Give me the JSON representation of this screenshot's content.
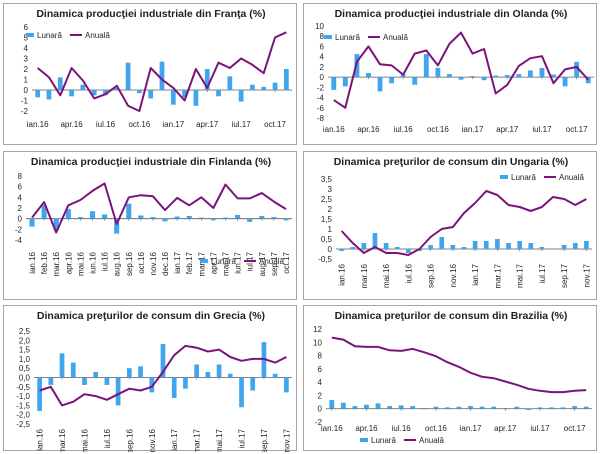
{
  "colors": {
    "monthly": "#41a5ee",
    "annual": "#7b137b",
    "axis": "#595959"
  },
  "chart_data": [
    {
      "type": "bar+line",
      "title": "Dinamica producţiei industriale din Franţa (%)",
      "legend": {
        "position": "top-left",
        "monthly_label": "Lunară",
        "annual_label": "Anuală"
      },
      "ylim": [
        -2,
        6
      ],
      "yticks": [
        "-2",
        "-1",
        "0",
        "1",
        "2",
        "3",
        "4",
        "5",
        "6"
      ],
      "ytick_values": [
        -2,
        -1,
        0,
        1,
        2,
        3,
        4,
        5,
        6
      ],
      "xticks": [
        {
          "index": 0,
          "label": "ian.16"
        },
        {
          "index": 3,
          "label": "apr.16"
        },
        {
          "index": 6,
          "label": "iul.16"
        },
        {
          "index": 9,
          "label": "oct.16"
        },
        {
          "index": 12,
          "label": "ian.17"
        },
        {
          "index": 15,
          "label": "apr.17"
        },
        {
          "index": 18,
          "label": "iul.17"
        },
        {
          "index": 21,
          "label": "oct.17"
        }
      ],
      "monthly": [
        -0.7,
        -0.9,
        1.2,
        -0.6,
        0.5,
        -0.5,
        -0.5,
        0.2,
        2.6,
        -0.3,
        -0.8,
        2.7,
        -1.4,
        -0.7,
        -1.5,
        2.0,
        -0.6,
        1.3,
        -1.1,
        0.5,
        0.3,
        0.7,
        2.0
      ],
      "annual": [
        2.1,
        1.2,
        -0.5,
        2.1,
        0.9,
        -0.8,
        -0.4,
        0.4,
        -1.5,
        -2.0,
        2.1,
        1.0,
        0.2,
        -1.0,
        2.0,
        0.2,
        2.6,
        2.1,
        3.0,
        2.4,
        1.6,
        5.0,
        5.5
      ]
    },
    {
      "type": "bar+line",
      "title": "Dinamica producţiei industriale din Olanda (%)",
      "legend": {
        "position": "top-left",
        "monthly_label": "Lunară",
        "annual_label": "Anuală"
      },
      "ylim": [
        -8,
        10
      ],
      "yticks": [
        "-8",
        "-6",
        "-4",
        "-2",
        "0",
        "2",
        "4",
        "6",
        "8",
        "10"
      ],
      "ytick_values": [
        -8,
        -6,
        -4,
        -2,
        0,
        2,
        4,
        6,
        8,
        10
      ],
      "xticks": [
        {
          "index": 0,
          "label": "ian.16"
        },
        {
          "index": 3,
          "label": "apr.16"
        },
        {
          "index": 6,
          "label": "iul.16"
        },
        {
          "index": 9,
          "label": "oct.16"
        },
        {
          "index": 12,
          "label": "ian.17"
        },
        {
          "index": 15,
          "label": "apr.17"
        },
        {
          "index": 18,
          "label": "iul.17"
        },
        {
          "index": 21,
          "label": "oct.17"
        }
      ],
      "monthly": [
        -2.5,
        -1.8,
        4.5,
        0.8,
        -2.8,
        -1.2,
        0.5,
        -1.5,
        4.5,
        1.8,
        0.6,
        -0.5,
        0.2,
        -0.6,
        0.3,
        0.4,
        0.6,
        1.3,
        1.8,
        0.5,
        -1.8,
        3.0,
        -1.2
      ],
      "annual": [
        -4.5,
        -6.0,
        3.0,
        6.0,
        2.5,
        2.3,
        0.5,
        4.6,
        5.2,
        2.3,
        6.5,
        8.7,
        4.6,
        5.5,
        -3.2,
        -1.5,
        2.2,
        3.7,
        4.1,
        -1.2,
        1.5,
        2.0,
        -0.5
      ]
    },
    {
      "type": "bar+line",
      "title": "Dinamica producţiei industriale din Finlanda (%)",
      "legend": {
        "position": "bottom-right",
        "monthly_label": "Lunară",
        "annual_label": "Anuală"
      },
      "ylim": [
        -4,
        8
      ],
      "yticks": [
        "-4",
        "-2",
        "0",
        "2",
        "4",
        "6",
        "8"
      ],
      "ytick_values": [
        -4,
        -2,
        0,
        2,
        4,
        6,
        8
      ],
      "xticks": [
        {
          "index": 0,
          "label": "ian.16"
        },
        {
          "index": 1,
          "label": "feb.16"
        },
        {
          "index": 2,
          "label": "mar.16"
        },
        {
          "index": 3,
          "label": "apr.16"
        },
        {
          "index": 4,
          "label": "mai.16"
        },
        {
          "index": 5,
          "label": "iun.16"
        },
        {
          "index": 6,
          "label": "iul.16"
        },
        {
          "index": 7,
          "label": "aug.16"
        },
        {
          "index": 8,
          "label": "sep.16"
        },
        {
          "index": 9,
          "label": "oct.16"
        },
        {
          "index": 10,
          "label": "nov.16"
        },
        {
          "index": 11,
          "label": "dec.16"
        },
        {
          "index": 12,
          "label": "ian.17"
        },
        {
          "index": 13,
          "label": "feb.17"
        },
        {
          "index": 14,
          "label": "mar.17"
        },
        {
          "index": 15,
          "label": "apr.17"
        },
        {
          "index": 16,
          "label": "mai.17"
        },
        {
          "index": 17,
          "label": "iun.17"
        },
        {
          "index": 18,
          "label": "iul.17"
        },
        {
          "index": 19,
          "label": "aug.17"
        },
        {
          "index": 20,
          "label": "sep.17"
        },
        {
          "index": 21,
          "label": "oct.17"
        }
      ],
      "monthly": [
        -1.5,
        2.5,
        -2.2,
        1.8,
        0.3,
        1.4,
        0.8,
        -2.8,
        2.8,
        0.6,
        0.3,
        -0.5,
        0.4,
        0.5,
        0.2,
        -0.3,
        0.2,
        0.7,
        -0.6,
        0.5,
        0.3,
        -0.3
      ],
      "annual": [
        0.2,
        3.1,
        -2.6,
        2.5,
        3.5,
        5.2,
        6.6,
        -1.0,
        4.0,
        4.4,
        4.2,
        1.6,
        3.9,
        2.5,
        4.0,
        2.0,
        6.4,
        3.8,
        3.8,
        4.8,
        3.2,
        1.8
      ]
    },
    {
      "type": "bar+line",
      "title": "Dinamica preţurilor de consum din Ungaria (%)",
      "legend": {
        "position": "top-right",
        "monthly_label": "Lunară",
        "annual_label": "Anuală"
      },
      "ylim": [
        -0.5,
        3.5
      ],
      "yticks": [
        "-0,5",
        "0",
        "0,5",
        "1",
        "1,5",
        "2",
        "2,5",
        "3",
        "3,5"
      ],
      "ytick_values": [
        -0.5,
        0,
        0.5,
        1,
        1.5,
        2,
        2.5,
        3,
        3.5
      ],
      "xticks": [
        {
          "index": 0,
          "label": "ian.16"
        },
        {
          "index": 2,
          "label": "mar.16"
        },
        {
          "index": 4,
          "label": "mai.16"
        },
        {
          "index": 6,
          "label": "iul.16"
        },
        {
          "index": 8,
          "label": "sep.16"
        },
        {
          "index": 10,
          "label": "nov.16"
        },
        {
          "index": 12,
          "label": "ian.17"
        },
        {
          "index": 14,
          "label": "mar.17"
        },
        {
          "index": 16,
          "label": "mai.17"
        },
        {
          "index": 18,
          "label": "iul.17"
        },
        {
          "index": 20,
          "label": "sep.17"
        },
        {
          "index": 22,
          "label": "nov.17"
        }
      ],
      "monthly": [
        -0.1,
        0.1,
        0.3,
        0.8,
        0.3,
        0.1,
        -0.2,
        -0.1,
        0.2,
        0.6,
        0.2,
        0.1,
        0.4,
        0.4,
        0.5,
        0.3,
        0.4,
        0.3,
        0.1,
        0.0,
        0.2,
        0.3,
        0.4
      ],
      "annual": [
        0.9,
        0.3,
        -0.2,
        0.1,
        -0.2,
        -0.2,
        -0.3,
        0.0,
        0.6,
        1.0,
        1.1,
        1.8,
        2.3,
        2.9,
        2.7,
        2.2,
        2.1,
        1.9,
        2.1,
        2.6,
        2.5,
        2.2,
        2.5
      ]
    },
    {
      "type": "bar+line",
      "title": "Dinamica preţurilor de consum din Grecia (%)",
      "legend": {
        "position": "none",
        "monthly_label": "",
        "annual_label": ""
      },
      "ylim": [
        -2.5,
        2.5
      ],
      "yticks": [
        "-2,5",
        "-2,0",
        "-1,5",
        "-1,0",
        "-0,5",
        "0,0",
        "0,5",
        "1,0",
        "1,5",
        "2,0",
        "2,5"
      ],
      "ytick_values": [
        -2.5,
        -2,
        -1.5,
        -1,
        -0.5,
        0,
        0.5,
        1,
        1.5,
        2,
        2.5
      ],
      "xticks": [
        {
          "index": 0,
          "label": "ian.16"
        },
        {
          "index": 2,
          "label": "mar.16"
        },
        {
          "index": 4,
          "label": "mai.16"
        },
        {
          "index": 6,
          "label": "iul.16"
        },
        {
          "index": 8,
          "label": "sep.16"
        },
        {
          "index": 10,
          "label": "nov.16"
        },
        {
          "index": 12,
          "label": "ian.17"
        },
        {
          "index": 14,
          "label": "mar.17"
        },
        {
          "index": 16,
          "label": "mai.17"
        },
        {
          "index": 18,
          "label": "iul.17"
        },
        {
          "index": 20,
          "label": "sep.17"
        },
        {
          "index": 22,
          "label": "nov.17"
        }
      ],
      "monthly": [
        -1.8,
        -0.4,
        1.3,
        0.8,
        -0.4,
        0.3,
        -0.4,
        -1.5,
        0.5,
        0.6,
        -0.8,
        1.8,
        -1.1,
        -0.6,
        0.7,
        0.3,
        0.7,
        0.2,
        -1.6,
        -0.7,
        1.9,
        0.2,
        -0.8
      ],
      "annual": [
        -0.7,
        -0.5,
        -1.5,
        -1.3,
        -0.9,
        -1.0,
        -1.2,
        -0.9,
        -0.6,
        -0.7,
        -0.5,
        0.3,
        1.2,
        1.7,
        1.6,
        1.4,
        1.5,
        1.1,
        0.9,
        1.0,
        1.0,
        0.8,
        1.1
      ]
    },
    {
      "type": "bar+line",
      "title": "Dinamica preţurilor de consum din Brazilia (%)",
      "legend": {
        "position": "bottom-left",
        "monthly_label": "Lunară",
        "annual_label": "Anuală"
      },
      "ylim": [
        -2,
        12
      ],
      "yticks": [
        "-2",
        "0",
        "2",
        "4",
        "6",
        "8",
        "10",
        "12"
      ],
      "ytick_values": [
        -2,
        0,
        2,
        4,
        6,
        8,
        10,
        12
      ],
      "xticks": [
        {
          "index": 0,
          "label": "ian.16"
        },
        {
          "index": 3,
          "label": "apr.16"
        },
        {
          "index": 6,
          "label": "iul.16"
        },
        {
          "index": 9,
          "label": "oct.16"
        },
        {
          "index": 12,
          "label": "ian.17"
        },
        {
          "index": 15,
          "label": "apr.17"
        },
        {
          "index": 18,
          "label": "iul.17"
        },
        {
          "index": 21,
          "label": "oct.17"
        }
      ],
      "monthly": [
        1.3,
        0.9,
        0.4,
        0.6,
        0.8,
        0.4,
        0.5,
        0.4,
        0.1,
        0.3,
        0.2,
        0.3,
        0.4,
        0.3,
        0.3,
        0.1,
        0.3,
        -0.2,
        0.2,
        0.2,
        0.2,
        0.4,
        0.3
      ],
      "annual": [
        10.7,
        10.4,
        9.4,
        9.3,
        9.3,
        8.8,
        8.7,
        9.0,
        8.5,
        7.9,
        7.0,
        6.3,
        5.4,
        4.8,
        4.6,
        4.1,
        3.6,
        3.0,
        2.7,
        2.5,
        2.5,
        2.7,
        2.8
      ]
    }
  ]
}
